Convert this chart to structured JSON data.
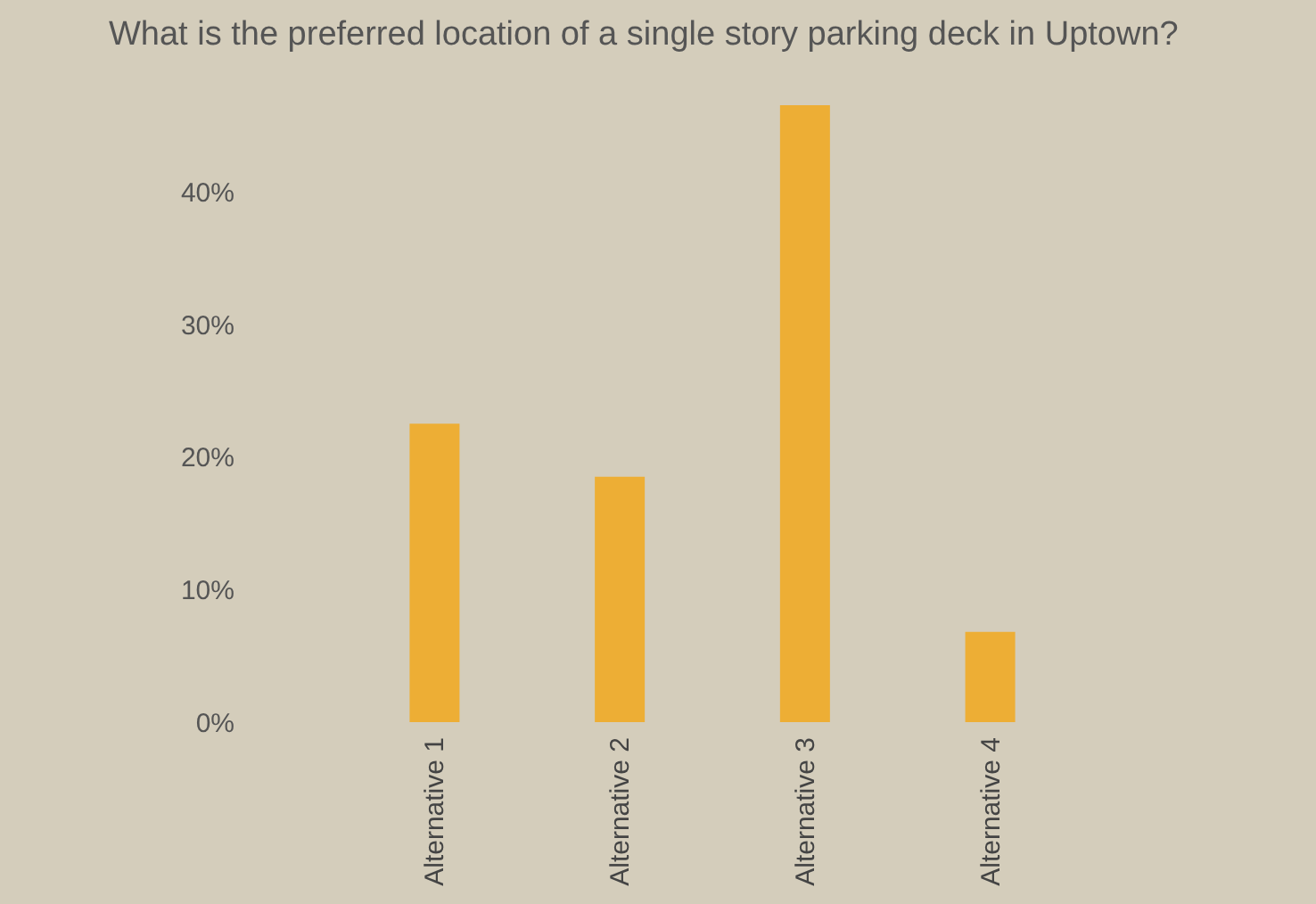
{
  "chart_data": {
    "type": "bar",
    "title": "What is the preferred location of  a single story parking deck in Uptown?",
    "categories": [
      "Alternative 1",
      "Alternative 2",
      "Alternative 3",
      "Alternative 4"
    ],
    "values": [
      22.5,
      18.5,
      46.5,
      6.8
    ],
    "color": "#edae35",
    "ylim": [
      0,
      46.5
    ],
    "yticks": [
      {
        "value": 0,
        "label": "0%"
      },
      {
        "value": 10,
        "label": "10%"
      },
      {
        "value": 20,
        "label": "20%"
      },
      {
        "value": 30,
        "label": "30%"
      },
      {
        "value": 40,
        "label": "40%"
      }
    ],
    "grid": false
  }
}
